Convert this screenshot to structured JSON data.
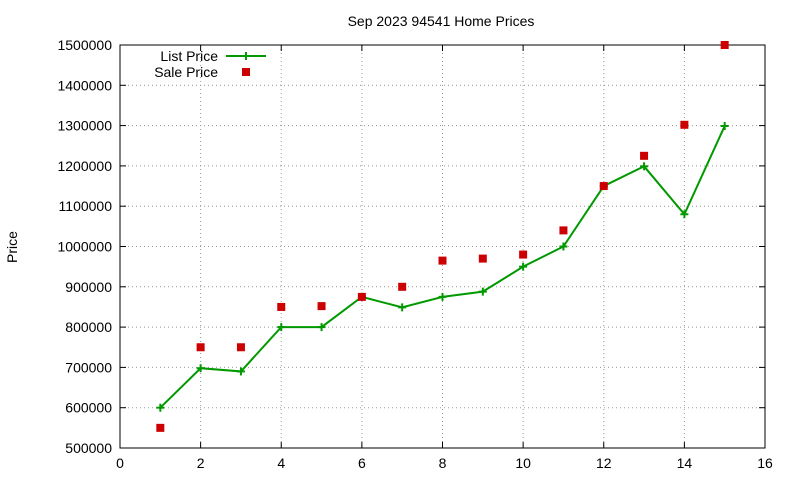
{
  "chart_data": {
    "type": "line",
    "title": "Sep 2023 94541 Home Prices",
    "xlabel": "",
    "ylabel": "Price",
    "xlim": [
      0,
      16
    ],
    "ylim": [
      500000,
      1500000
    ],
    "x_ticks": [
      0,
      2,
      4,
      6,
      8,
      10,
      12,
      14,
      16
    ],
    "y_ticks": [
      500000,
      600000,
      700000,
      800000,
      900000,
      1000000,
      1100000,
      1200000,
      1300000,
      1400000,
      1500000
    ],
    "x_tick_labels": [
      "0",
      "2",
      "4",
      "6",
      "8",
      "10",
      "12",
      "14",
      "16"
    ],
    "y_tick_labels": [
      "500000",
      "600000",
      "700000",
      "800000",
      "900000",
      "1000000",
      "1100000",
      "1200000",
      "1300000",
      "1400000",
      "1500000"
    ],
    "grid": true,
    "legend_placement": "top-left",
    "series": [
      {
        "name": "List Price",
        "style": "line-with-plus-markers",
        "color": "#009900",
        "x": [
          1,
          2,
          3,
          4,
          5,
          6,
          7,
          8,
          9,
          10,
          11,
          12,
          13,
          14,
          15
        ],
        "y": [
          600000,
          698000,
          690000,
          800000,
          800000,
          875000,
          849000,
          875000,
          888000,
          950000,
          1000000,
          1150000,
          1199000,
          1080000,
          1299000
        ]
      },
      {
        "name": "Sale Price",
        "style": "square-markers",
        "color": "#cc0000",
        "x": [
          1,
          2,
          3,
          4,
          5,
          6,
          7,
          8,
          9,
          10,
          11,
          12,
          13,
          14,
          15
        ],
        "y": [
          550000,
          750000,
          750000,
          850000,
          852000,
          875000,
          900000,
          965000,
          970000,
          980000,
          1040000,
          1150000,
          1225000,
          1302000,
          1500000
        ]
      }
    ]
  }
}
